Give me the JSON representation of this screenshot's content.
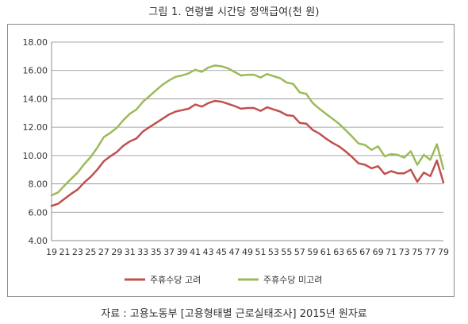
{
  "figure": {
    "title": "그림 1. 연령별 시간당 정액급여(천 원)",
    "source": "자료 : 고용노동부 [고용형태별 근로실태조사] 2015년 원자료"
  },
  "chart_data": {
    "type": "line",
    "title": "그림 1. 연령별 시간당 정액급여(천 원)",
    "xlabel": "",
    "ylabel": "",
    "ylim": [
      4.0,
      18.0
    ],
    "yticks": [
      "4.00",
      "6.00",
      "8.00",
      "10.00",
      "12.00",
      "14.00",
      "16.00",
      "18.00"
    ],
    "grid": true,
    "legend_position": "bottom",
    "x": [
      19,
      20,
      21,
      22,
      23,
      24,
      25,
      26,
      27,
      28,
      29,
      30,
      31,
      32,
      33,
      34,
      35,
      36,
      37,
      38,
      39,
      40,
      41,
      42,
      43,
      44,
      45,
      46,
      47,
      48,
      49,
      50,
      51,
      52,
      53,
      54,
      55,
      56,
      57,
      58,
      59,
      60,
      61,
      62,
      63,
      64,
      65,
      66,
      67,
      68,
      69,
      70,
      71,
      72,
      73,
      74,
      75,
      76,
      77,
      78,
      79
    ],
    "xticks": [
      19,
      21,
      23,
      25,
      27,
      29,
      31,
      33,
      35,
      37,
      39,
      41,
      43,
      45,
      47,
      49,
      51,
      53,
      55,
      57,
      59,
      61,
      63,
      65,
      67,
      69,
      71,
      73,
      75,
      77,
      79
    ],
    "series": [
      {
        "name": "주휴수당 고려",
        "color": "#c0504d",
        "values": [
          6.45,
          6.6,
          6.95,
          7.3,
          7.6,
          8.1,
          8.5,
          9.0,
          9.6,
          9.95,
          10.25,
          10.7,
          11.0,
          11.2,
          11.7,
          12.0,
          12.3,
          12.6,
          12.9,
          13.1,
          13.2,
          13.3,
          13.6,
          13.45,
          13.7,
          13.85,
          13.8,
          13.65,
          13.5,
          13.3,
          13.35,
          13.35,
          13.15,
          13.4,
          13.25,
          13.1,
          12.85,
          12.8,
          12.3,
          12.25,
          11.8,
          11.55,
          11.2,
          10.9,
          10.65,
          10.3,
          9.9,
          9.45,
          9.35,
          9.1,
          9.25,
          8.7,
          8.9,
          8.75,
          8.75,
          9.0,
          8.15,
          8.8,
          8.55,
          9.65,
          8.1
        ]
      },
      {
        "name": "주휴수당 미고려",
        "color": "#9bbb59",
        "values": [
          7.2,
          7.4,
          7.9,
          8.35,
          8.8,
          9.4,
          9.9,
          10.55,
          11.3,
          11.6,
          11.95,
          12.5,
          12.95,
          13.25,
          13.8,
          14.2,
          14.6,
          15.0,
          15.3,
          15.55,
          15.65,
          15.8,
          16.05,
          15.9,
          16.2,
          16.35,
          16.3,
          16.15,
          15.9,
          15.65,
          15.7,
          15.7,
          15.5,
          15.75,
          15.6,
          15.45,
          15.15,
          15.05,
          14.45,
          14.35,
          13.7,
          13.3,
          12.95,
          12.6,
          12.25,
          11.8,
          11.35,
          10.85,
          10.75,
          10.4,
          10.65,
          9.95,
          10.1,
          10.05,
          9.85,
          10.3,
          9.35,
          10.05,
          9.7,
          10.8,
          9.05
        ]
      }
    ]
  }
}
